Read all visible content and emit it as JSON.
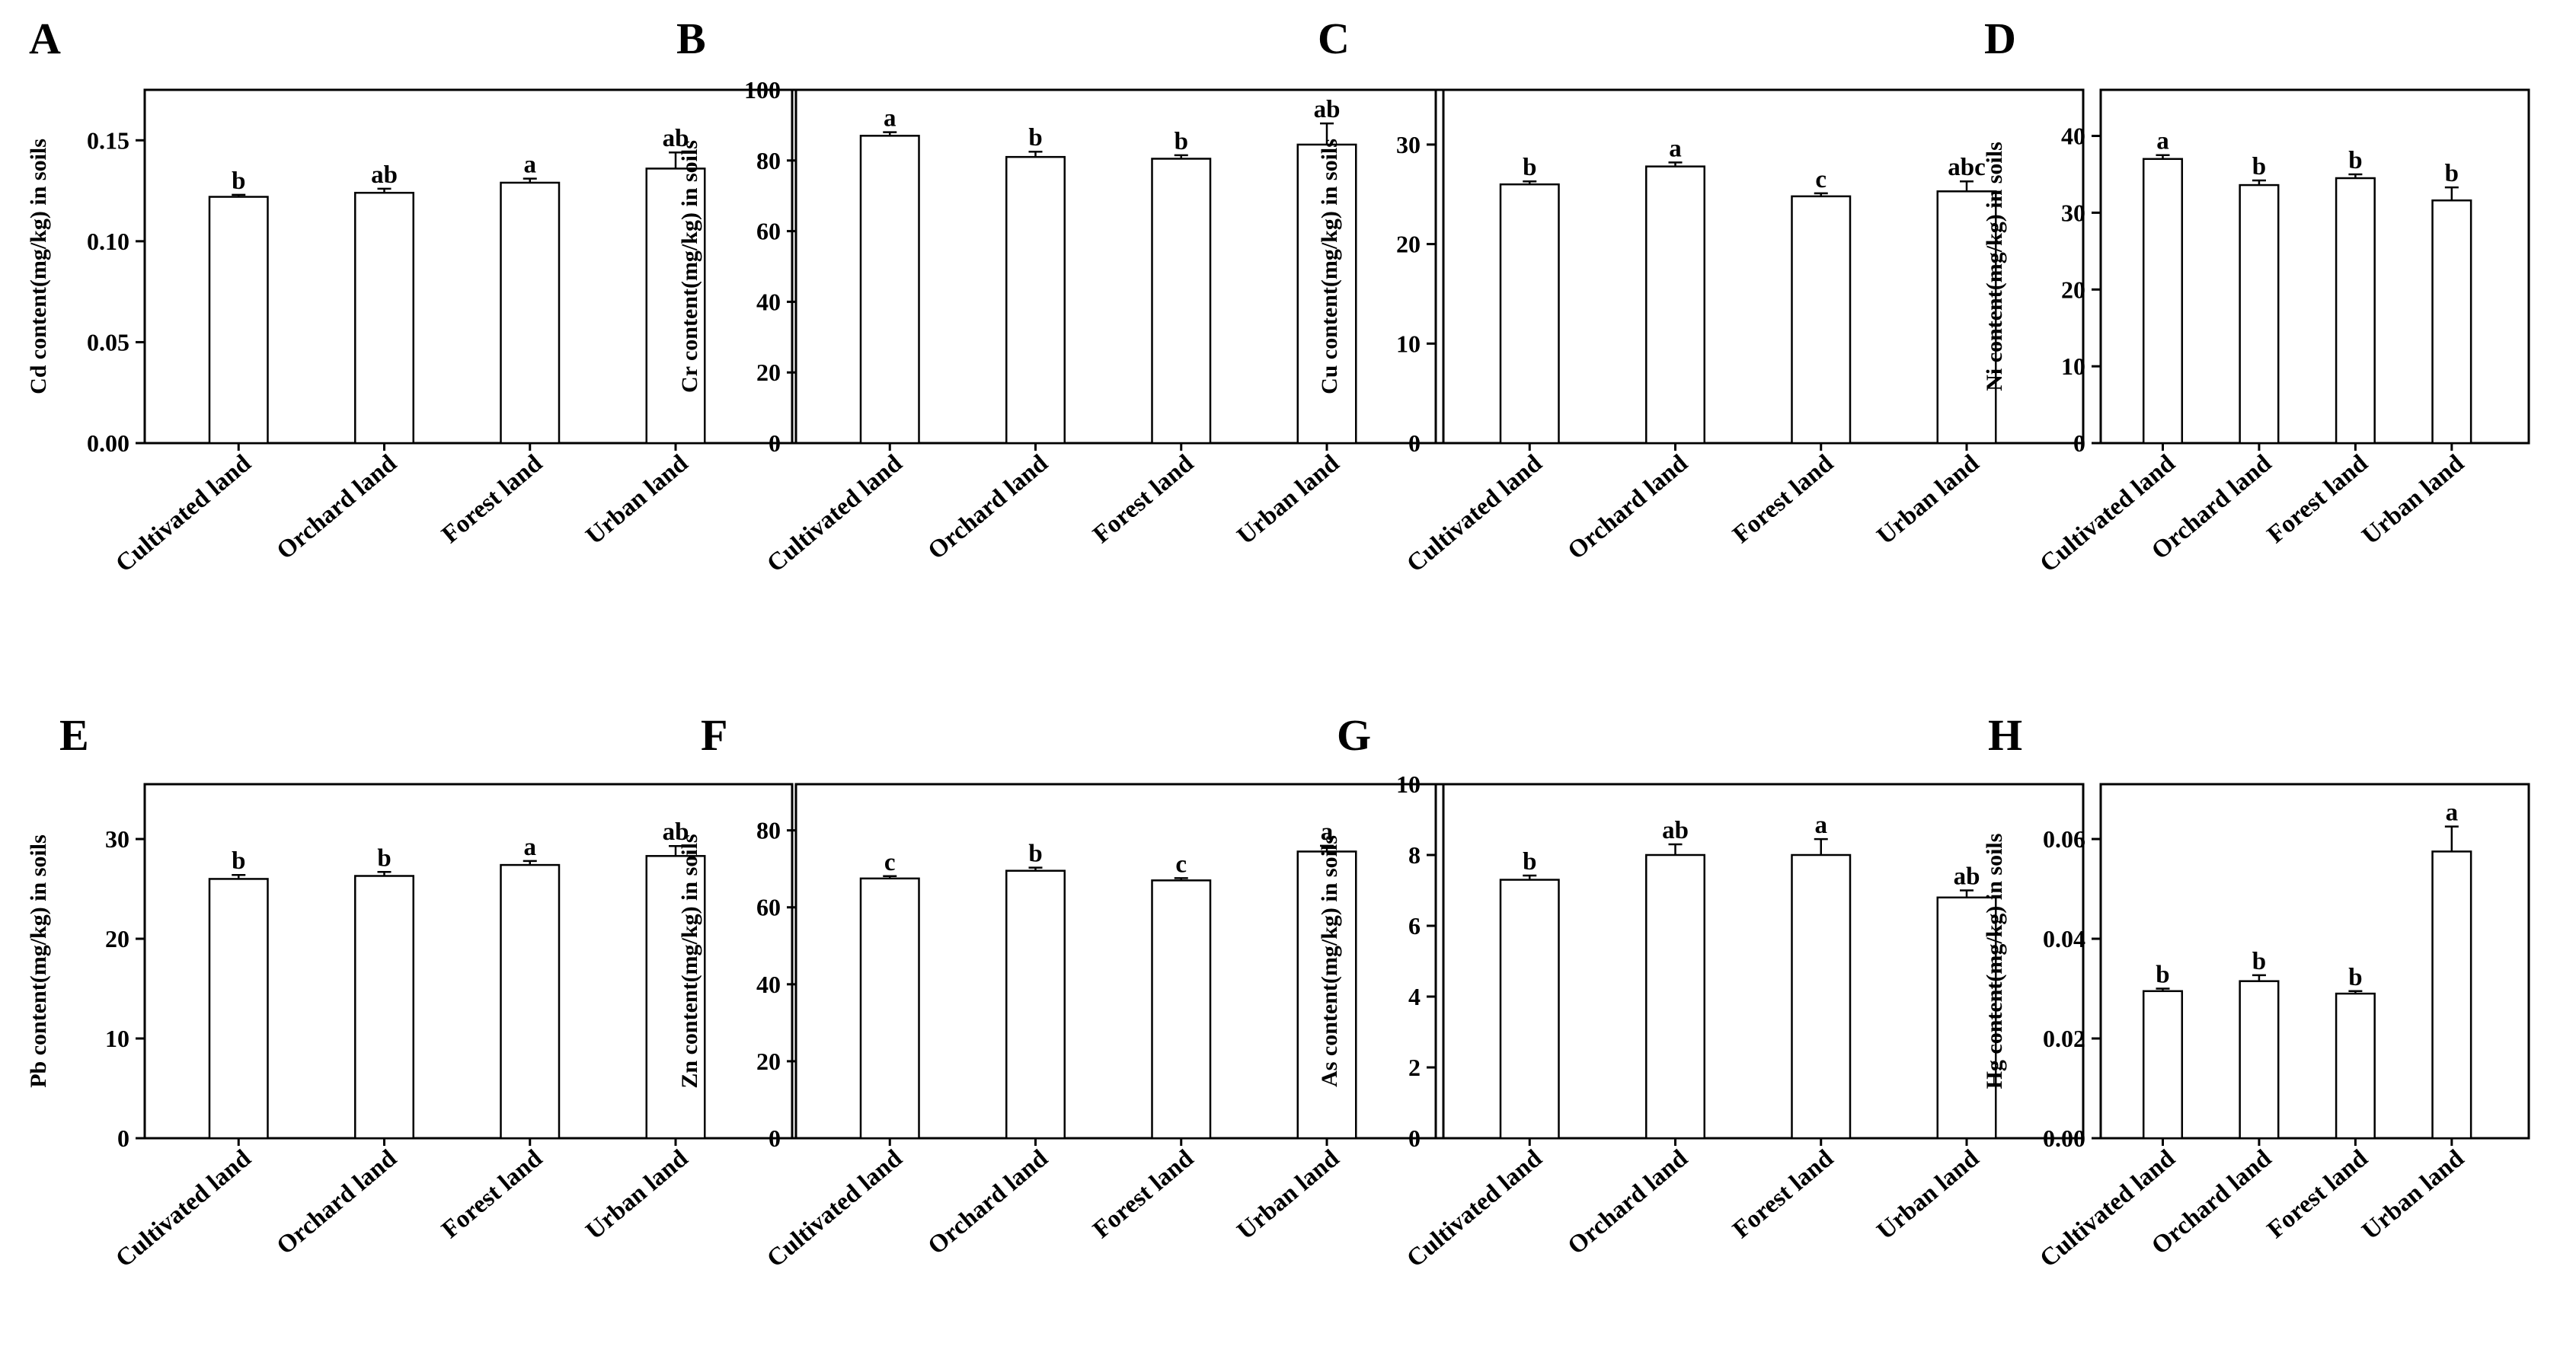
{
  "chart_data": [
    {
      "panel": "A",
      "type": "bar",
      "ylabel": "Cd content(mg/kg) in soils",
      "categories": [
        "Cultivated land",
        "Orchard land",
        "Forest land",
        "Urban land"
      ],
      "values": [
        0.122,
        0.124,
        0.129,
        0.136
      ],
      "errors": [
        0.001,
        0.002,
        0.002,
        0.008
      ],
      "significance": [
        "b",
        "ab",
        "a",
        "ab"
      ],
      "ylim": [
        0,
        0.175
      ],
      "yticks": [
        0,
        0.05,
        0.1,
        0.15
      ],
      "ytick_labels": [
        "0.00",
        "0.05",
        "0.10",
        "0.15"
      ]
    },
    {
      "panel": "B",
      "type": "bar",
      "ylabel": "Cr content(mg/kg) in soils",
      "categories": [
        "Cultivated land",
        "Orchard land",
        "Forest land",
        "Urban land"
      ],
      "values": [
        87,
        81,
        80.5,
        84.5
      ],
      "errors": [
        1,
        1.5,
        1,
        6
      ],
      "significance": [
        "a",
        "b",
        "b",
        "ab"
      ],
      "ylim": [
        0,
        100
      ],
      "yticks": [
        0,
        20,
        40,
        60,
        80,
        100
      ],
      "ytick_labels": [
        "0",
        "20",
        "40",
        "60",
        "80",
        "100"
      ]
    },
    {
      "panel": "C",
      "type": "bar",
      "ylabel": "Cu content(mg/kg) in soils",
      "categories": [
        "Cultivated land",
        "Orchard land",
        "Forest land",
        "Urban land"
      ],
      "values": [
        26,
        27.8,
        24.8,
        25.3
      ],
      "errors": [
        0.3,
        0.4,
        0.3,
        1
      ],
      "significance": [
        "b",
        "a",
        "c",
        "abc"
      ],
      "ylim": [
        0,
        35.5
      ],
      "yticks": [
        0,
        10,
        20,
        30
      ],
      "ytick_labels": [
        "0",
        "10",
        "20",
        "30"
      ]
    },
    {
      "panel": "D",
      "type": "bar",
      "ylabel": "Ni content(mg/kg) in soils",
      "categories": [
        "Cultivated land",
        "Orchard land",
        "Forest land",
        "Urban land"
      ],
      "values": [
        37,
        33.6,
        34.5,
        31.6
      ],
      "errors": [
        0.5,
        0.6,
        0.5,
        1.7
      ],
      "significance": [
        "a",
        "b",
        "b",
        "b"
      ],
      "ylim": [
        0,
        46
      ],
      "yticks": [
        0,
        10,
        20,
        30,
        40
      ],
      "ytick_labels": [
        "0",
        "10",
        "20",
        "30",
        "40"
      ]
    },
    {
      "panel": "E",
      "type": "bar",
      "ylabel": "Pb content(mg/kg) in soils",
      "categories": [
        "Cultivated land",
        "Orchard land",
        "Forest land",
        "Urban land"
      ],
      "values": [
        26,
        26.3,
        27.4,
        28.3
      ],
      "errors": [
        0.4,
        0.4,
        0.4,
        1
      ],
      "significance": [
        "b",
        "b",
        "a",
        "ab"
      ],
      "ylim": [
        0,
        35.5
      ],
      "yticks": [
        0,
        10,
        20,
        30
      ],
      "ytick_labels": [
        "0",
        "10",
        "20",
        "30"
      ]
    },
    {
      "panel": "F",
      "type": "bar",
      "ylabel": "Zn content(mg/kg) in soils",
      "categories": [
        "Cultivated land",
        "Orchard land",
        "Forest land",
        "Urban land"
      ],
      "values": [
        67.5,
        69.5,
        67,
        74.5
      ],
      "errors": [
        0.6,
        0.8,
        0.6,
        1.5
      ],
      "significance": [
        "c",
        "b",
        "c",
        "a"
      ],
      "ylim": [
        0,
        92
      ],
      "yticks": [
        0,
        20,
        40,
        60,
        80
      ],
      "ytick_labels": [
        "0",
        "20",
        "40",
        "60",
        "80"
      ]
    },
    {
      "panel": "G",
      "type": "bar",
      "ylabel": "As content(mg/kg) in soils",
      "categories": [
        "Cultivated land",
        "Orchard land",
        "Forest land",
        "Urban land"
      ],
      "values": [
        7.3,
        8,
        8,
        6.8
      ],
      "errors": [
        0.12,
        0.3,
        0.45,
        0.2
      ],
      "significance": [
        "b",
        "ab",
        "a",
        "ab"
      ],
      "ylim": [
        0,
        10
      ],
      "yticks": [
        0,
        2,
        4,
        6,
        8,
        10
      ],
      "ytick_labels": [
        "0",
        "2",
        "4",
        "6",
        "8",
        "10"
      ]
    },
    {
      "panel": "H",
      "type": "bar",
      "ylabel": "Hg content(mg/kg) in soils",
      "categories": [
        "Cultivated land",
        "Orchard land",
        "Forest land",
        "Urban land"
      ],
      "values": [
        0.0295,
        0.0315,
        0.029,
        0.0575
      ],
      "errors": [
        0.0005,
        0.0012,
        0.0005,
        0.005
      ],
      "significance": [
        "b",
        "b",
        "b",
        "a"
      ],
      "ylim": [
        0,
        0.071
      ],
      "yticks": [
        0,
        0.02,
        0.04,
        0.06
      ],
      "ytick_labels": [
        "0.00",
        "0.02",
        "0.04",
        "0.06"
      ]
    }
  ]
}
